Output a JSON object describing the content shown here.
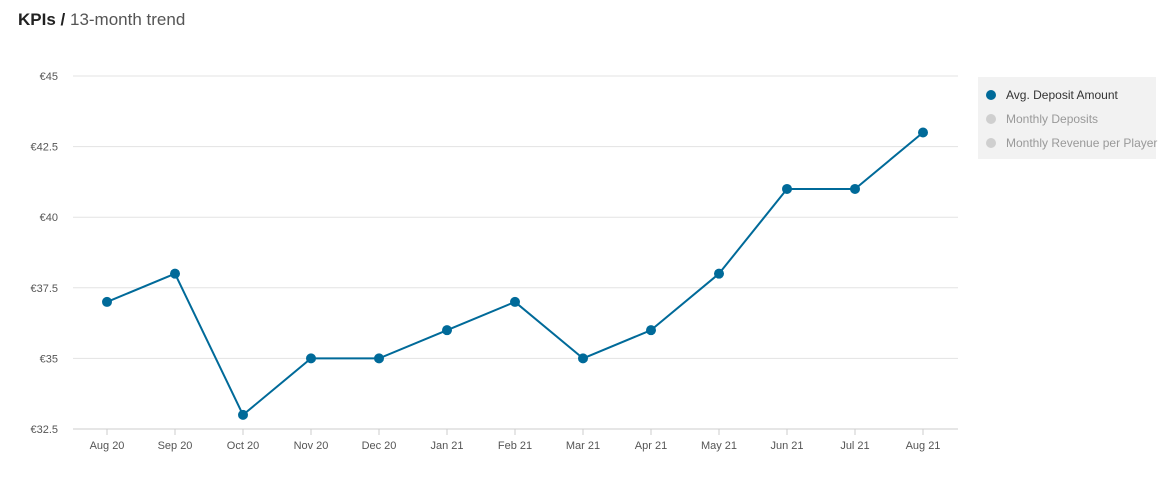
{
  "title": {
    "bold": "KPIs /",
    "rest": "13-month trend"
  },
  "chart_data": {
    "type": "line",
    "categories": [
      "Aug 20",
      "Sep 20",
      "Oct 20",
      "Nov 20",
      "Dec 20",
      "Jan 21",
      "Feb 21",
      "Mar 21",
      "Apr 21",
      "May 21",
      "Jun 21",
      "Jul 21",
      "Aug 21"
    ],
    "series": [
      {
        "name": "Avg. Deposit Amount",
        "color": "#006a99",
        "values": [
          37,
          38,
          33,
          35,
          35,
          36,
          37,
          35,
          36,
          38,
          41,
          41,
          43
        ]
      }
    ],
    "ylim": [
      32.5,
      45
    ],
    "yticks": [
      32.5,
      35,
      37.5,
      40,
      42.5,
      45
    ],
    "ytick_labels": [
      "€32.5",
      "€35",
      "€37.5",
      "€40",
      "€42.5",
      "€45"
    ],
    "grid": true,
    "legend_position": "right"
  },
  "legend": {
    "items": [
      {
        "label": "Avg. Deposit Amount",
        "active": true,
        "color": "#006a99"
      },
      {
        "label": "Monthly Deposits",
        "active": false,
        "color": "#cfcfcf"
      },
      {
        "label": "Monthly Revenue per Player",
        "active": false,
        "color": "#cfcfcf"
      }
    ]
  }
}
